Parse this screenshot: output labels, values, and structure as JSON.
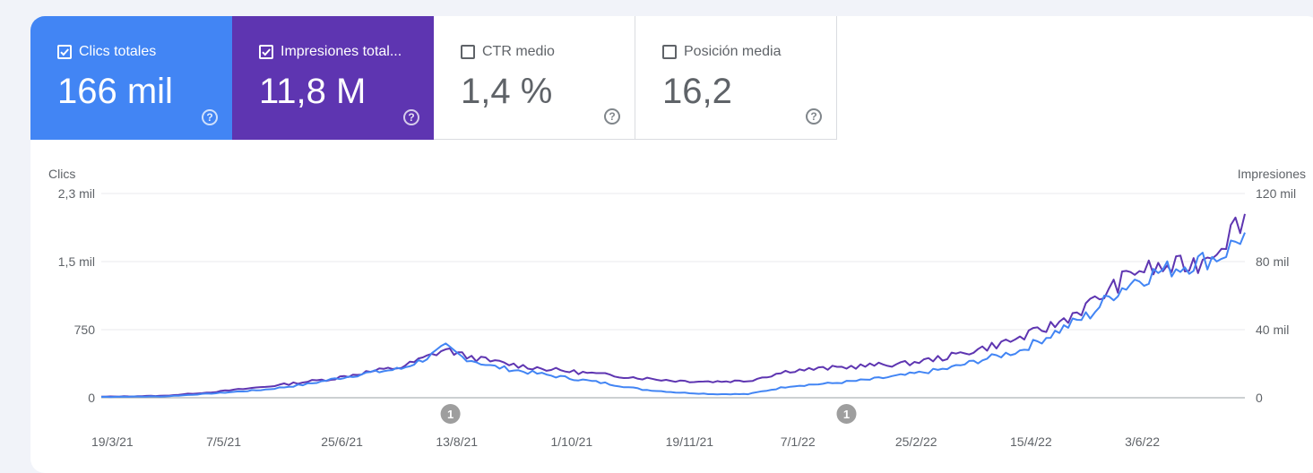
{
  "cards": [
    {
      "label": "Clics totales",
      "value": "166 mil",
      "checked": true
    },
    {
      "label": "Impresiones total...",
      "value": "11,8 M",
      "checked": true
    },
    {
      "label": "CTR medio",
      "value": "1,4 %",
      "checked": false
    },
    {
      "label": "Posición media",
      "value": "16,2",
      "checked": false
    }
  ],
  "help_glyph": "?",
  "colors": {
    "clicks": "#4285f4",
    "impressions": "#5e35b1",
    "grid": "#e8eaed"
  },
  "chart_data": {
    "type": "line",
    "y_left_label": "Clics",
    "y_right_label": "Impresiones",
    "y_left_ticks": [
      {
        "value": 0,
        "label": "0"
      },
      {
        "value": 750,
        "label": "750"
      },
      {
        "value": 1500,
        "label": "1,5 mil"
      },
      {
        "value": 2250,
        "label": "2,3 mil"
      }
    ],
    "y_right_ticks": [
      {
        "value": 0,
        "label": "0"
      },
      {
        "value": 40000,
        "label": "40 mil"
      },
      {
        "value": 80000,
        "label": "80 mil"
      },
      {
        "value": 120000,
        "label": "120 mil"
      }
    ],
    "ylim_left": [
      0,
      2250
    ],
    "ylim_right": [
      0,
      120000
    ],
    "xlim": [
      "2021-03-19",
      "2022-07-20"
    ],
    "x_ticks": [
      {
        "date": "2021-03-19",
        "label": "19/3/21"
      },
      {
        "date": "2021-05-07",
        "label": "7/5/21"
      },
      {
        "date": "2021-06-25",
        "label": "25/6/21"
      },
      {
        "date": "2021-08-13",
        "label": "13/8/21"
      },
      {
        "date": "2021-10-01",
        "label": "1/10/21"
      },
      {
        "date": "2021-11-19",
        "label": "19/11/21"
      },
      {
        "date": "2022-01-07",
        "label": "7/1/22"
      },
      {
        "date": "2022-02-25",
        "label": "25/2/22"
      },
      {
        "date": "2022-04-15",
        "label": "15/4/22"
      },
      {
        "date": "2022-06-03",
        "label": "3/6/22"
      }
    ],
    "annotations": [
      {
        "date": "2021-08-15",
        "label": "1"
      },
      {
        "date": "2022-01-31",
        "label": "1"
      }
    ],
    "series": [
      {
        "name": "Clics totales",
        "axis": "left",
        "points": [
          [
            "2021-03-19",
            10
          ],
          [
            "2021-04-15",
            15
          ],
          [
            "2021-05-07",
            50
          ],
          [
            "2021-05-28",
            90
          ],
          [
            "2021-06-15",
            150
          ],
          [
            "2021-06-25",
            200
          ],
          [
            "2021-07-10",
            270
          ],
          [
            "2021-07-25",
            320
          ],
          [
            "2021-08-05",
            440
          ],
          [
            "2021-08-13",
            560
          ],
          [
            "2021-08-20",
            450
          ],
          [
            "2021-09-01",
            350
          ],
          [
            "2021-09-15",
            290
          ],
          [
            "2021-10-01",
            230
          ],
          [
            "2021-10-20",
            160
          ],
          [
            "2021-11-05",
            90
          ],
          [
            "2021-11-19",
            60
          ],
          [
            "2021-12-05",
            40
          ],
          [
            "2021-12-20",
            40
          ],
          [
            "2022-01-07",
            130
          ],
          [
            "2022-01-25",
            160
          ],
          [
            "2022-02-10",
            200
          ],
          [
            "2022-02-25",
            250
          ],
          [
            "2022-03-15",
            320
          ],
          [
            "2022-03-30",
            420
          ],
          [
            "2022-04-15",
            520
          ],
          [
            "2022-04-30",
            720
          ],
          [
            "2022-05-15",
            920
          ],
          [
            "2022-05-25",
            1150
          ],
          [
            "2022-06-03",
            1300
          ],
          [
            "2022-06-15",
            1400
          ],
          [
            "2022-06-30",
            1500
          ],
          [
            "2022-07-10",
            1570
          ],
          [
            "2022-07-20",
            1820
          ]
        ]
      },
      {
        "name": "Impresiones totales",
        "axis": "right",
        "points": [
          [
            "2021-03-19",
            600
          ],
          [
            "2021-04-15",
            1200
          ],
          [
            "2021-05-07",
            3500
          ],
          [
            "2021-05-28",
            6500
          ],
          [
            "2021-06-15",
            9500
          ],
          [
            "2021-06-25",
            11000
          ],
          [
            "2021-07-10",
            15000
          ],
          [
            "2021-07-25",
            18000
          ],
          [
            "2021-08-05",
            24000
          ],
          [
            "2021-08-13",
            28500
          ],
          [
            "2021-08-20",
            25000
          ],
          [
            "2021-09-01",
            21500
          ],
          [
            "2021-09-15",
            18500
          ],
          [
            "2021-10-01",
            16000
          ],
          [
            "2021-10-20",
            13500
          ],
          [
            "2021-11-05",
            11500
          ],
          [
            "2021-11-19",
            10000
          ],
          [
            "2021-12-05",
            9500
          ],
          [
            "2021-12-20",
            10000
          ],
          [
            "2022-01-07",
            16000
          ],
          [
            "2022-01-25",
            17500
          ],
          [
            "2022-02-10",
            19000
          ],
          [
            "2022-02-25",
            20000
          ],
          [
            "2022-03-15",
            24000
          ],
          [
            "2022-03-30",
            29000
          ],
          [
            "2022-04-15",
            35000
          ],
          [
            "2022-04-30",
            43000
          ],
          [
            "2022-05-15",
            55000
          ],
          [
            "2022-05-25",
            65000
          ],
          [
            "2022-06-03",
            75000
          ],
          [
            "2022-06-15",
            76000
          ],
          [
            "2022-06-30",
            79000
          ],
          [
            "2022-07-10",
            91000
          ],
          [
            "2022-07-20",
            108000
          ]
        ]
      }
    ]
  }
}
